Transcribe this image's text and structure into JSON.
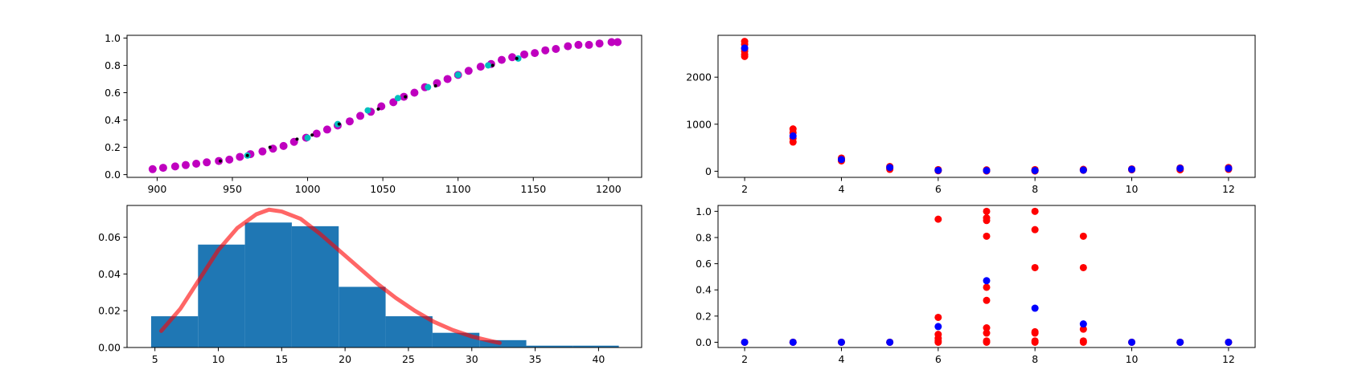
{
  "chart_data": [
    {
      "id": "sigmoid",
      "type": "scatter",
      "xlim": [
        880,
        1222
      ],
      "ylim": [
        -0.02,
        1.02
      ],
      "xticks": [
        900,
        950,
        1000,
        1050,
        1100,
        1150,
        1200
      ],
      "yticks": [
        0.0,
        0.2,
        0.4,
        0.6,
        0.8,
        1.0
      ],
      "ytick_decimals": 1,
      "grid": false,
      "series": [
        {
          "marker": "circle",
          "color": "#bf00bf",
          "size": 5,
          "x": [
            897,
            904,
            912,
            919,
            926,
            933,
            941,
            948,
            955,
            962,
            970,
            977,
            984,
            991,
            999,
            1006,
            1013,
            1020,
            1028,
            1035,
            1042,
            1049,
            1057,
            1064,
            1071,
            1078,
            1086,
            1093,
            1100,
            1107,
            1115,
            1122,
            1129,
            1136,
            1144,
            1151,
            1158,
            1165,
            1173,
            1180,
            1187,
            1194,
            1202,
            1206
          ],
          "y": [
            0.04,
            0.05,
            0.06,
            0.07,
            0.08,
            0.09,
            0.1,
            0.11,
            0.13,
            0.15,
            0.17,
            0.19,
            0.21,
            0.24,
            0.27,
            0.3,
            0.33,
            0.36,
            0.39,
            0.43,
            0.46,
            0.5,
            0.53,
            0.57,
            0.6,
            0.64,
            0.67,
            0.7,
            0.73,
            0.76,
            0.79,
            0.81,
            0.84,
            0.86,
            0.88,
            0.89,
            0.91,
            0.92,
            0.94,
            0.95,
            0.95,
            0.96,
            0.97,
            0.97
          ]
        },
        {
          "marker": "circle",
          "color": "#00bfbf",
          "size": 4,
          "x": [
            960,
            1000,
            1020,
            1040,
            1060,
            1080,
            1100,
            1120,
            1140
          ],
          "y": [
            0.14,
            0.27,
            0.37,
            0.47,
            0.56,
            0.64,
            0.73,
            0.8,
            0.85
          ]
        },
        {
          "marker": "point",
          "color": "#000000",
          "size": 2,
          "x": [
            942,
            960,
            975,
            993,
            1003,
            1021,
            1047,
            1065,
            1085,
            1123,
            1139
          ],
          "y": [
            0.1,
            0.14,
            0.2,
            0.26,
            0.29,
            0.37,
            0.48,
            0.57,
            0.65,
            0.8,
            0.85
          ]
        }
      ]
    },
    {
      "id": "counts",
      "type": "scatter",
      "xlim": [
        1.45,
        12.55
      ],
      "ylim": [
        -130,
        2890
      ],
      "xticks": [
        2,
        4,
        6,
        8,
        10,
        12
      ],
      "yticks": [
        0,
        1000,
        2000
      ],
      "ytick_decimals": 0,
      "grid": false,
      "series": [
        {
          "marker": "circle",
          "color": "#ff0000",
          "size": 4.5,
          "x": [
            2,
            2,
            2,
            2,
            2,
            2,
            3,
            3,
            3,
            3,
            4,
            4,
            4,
            5,
            5,
            5,
            6,
            6,
            6,
            7,
            7,
            7,
            8,
            8,
            8,
            9,
            9,
            9,
            10,
            10,
            10,
            11,
            11,
            11,
            12,
            12,
            12
          ],
          "y": [
            2760,
            2700,
            2600,
            2550,
            2480,
            2440,
            900,
            820,
            700,
            620,
            280,
            240,
            220,
            100,
            70,
            40,
            35,
            20,
            10,
            30,
            15,
            5,
            35,
            20,
            5,
            40,
            30,
            20,
            50,
            40,
            30,
            70,
            50,
            30,
            80,
            60,
            40
          ]
        },
        {
          "marker": "circle",
          "color": "#0000ff",
          "size": 4.5,
          "x": [
            2,
            3,
            4,
            5,
            6,
            7,
            8,
            9,
            10,
            11,
            12
          ],
          "y": [
            2620,
            750,
            250,
            80,
            20,
            15,
            15,
            25,
            40,
            60,
            60
          ]
        }
      ]
    },
    {
      "id": "histogram",
      "type": "bar",
      "xlim": [
        2.8,
        43.4
      ],
      "ylim": [
        0,
        0.0773
      ],
      "xticks": [
        5,
        10,
        15,
        20,
        25,
        30,
        35,
        40
      ],
      "yticks": [
        0.0,
        0.02,
        0.04,
        0.06
      ],
      "ytick_decimals": 2,
      "grid": false,
      "bars": {
        "color": "#1f77b4",
        "edges": [
          4.7,
          8.4,
          12.1,
          15.8,
          19.5,
          23.2,
          26.9,
          30.6,
          34.3,
          38.0,
          41.6
        ],
        "values": [
          0.017,
          0.056,
          0.068,
          0.066,
          0.033,
          0.017,
          0.008,
          0.004,
          0.001,
          0.001
        ]
      },
      "series": [
        {
          "type": "line",
          "color": "#ff0000",
          "opacity": 0.6,
          "width": 5,
          "x": [
            5.5,
            7,
            8.5,
            10,
            11.5,
            13,
            14,
            15,
            16.5,
            18,
            19.5,
            21,
            22.5,
            24,
            25.5,
            27,
            28.5,
            30,
            31.5,
            32.2
          ],
          "y": [
            0.009,
            0.021,
            0.037,
            0.053,
            0.065,
            0.0725,
            0.075,
            0.074,
            0.07,
            0.062,
            0.053,
            0.044,
            0.035,
            0.027,
            0.02,
            0.014,
            0.0095,
            0.006,
            0.0035,
            0.0025
          ]
        }
      ]
    },
    {
      "id": "probabilities",
      "type": "scatter",
      "xlim": [
        1.45,
        12.55
      ],
      "ylim": [
        -0.04,
        1.045
      ],
      "xticks": [
        2,
        4,
        6,
        8,
        10,
        12
      ],
      "yticks": [
        0.0,
        0.2,
        0.4,
        0.6,
        0.8,
        1.0
      ],
      "ytick_decimals": 1,
      "grid": false,
      "series": [
        {
          "marker": "circle",
          "color": "#ff0000",
          "size": 4.5,
          "x": [
            2,
            2,
            3,
            3,
            4,
            4,
            5,
            5,
            6,
            6,
            6,
            6,
            6,
            6,
            7,
            7,
            7,
            7,
            7,
            7,
            7,
            7,
            7,
            7,
            8,
            8,
            8,
            8,
            8,
            8,
            8,
            9,
            9,
            9,
            9,
            9,
            10,
            10,
            11,
            11,
            12,
            12
          ],
          "y": [
            0,
            0,
            0,
            0,
            0,
            0,
            0,
            0,
            0.94,
            0.19,
            0.06,
            0.03,
            0.01,
            0.0,
            1.0,
            0.95,
            0.93,
            0.81,
            0.42,
            0.32,
            0.11,
            0.07,
            0.01,
            0.0,
            1.0,
            0.86,
            0.57,
            0.08,
            0.07,
            0.01,
            0.0,
            0.81,
            0.57,
            0.1,
            0.01,
            0.0,
            0,
            0,
            0,
            0,
            0,
            0
          ]
        },
        {
          "marker": "circle",
          "color": "#0000ff",
          "size": 4.5,
          "x": [
            2,
            3,
            4,
            5,
            6,
            7,
            8,
            9,
            10,
            11,
            12
          ],
          "y": [
            0,
            0,
            0,
            0,
            0.12,
            0.47,
            0.26,
            0.14,
            0,
            0,
            0
          ]
        }
      ]
    }
  ]
}
